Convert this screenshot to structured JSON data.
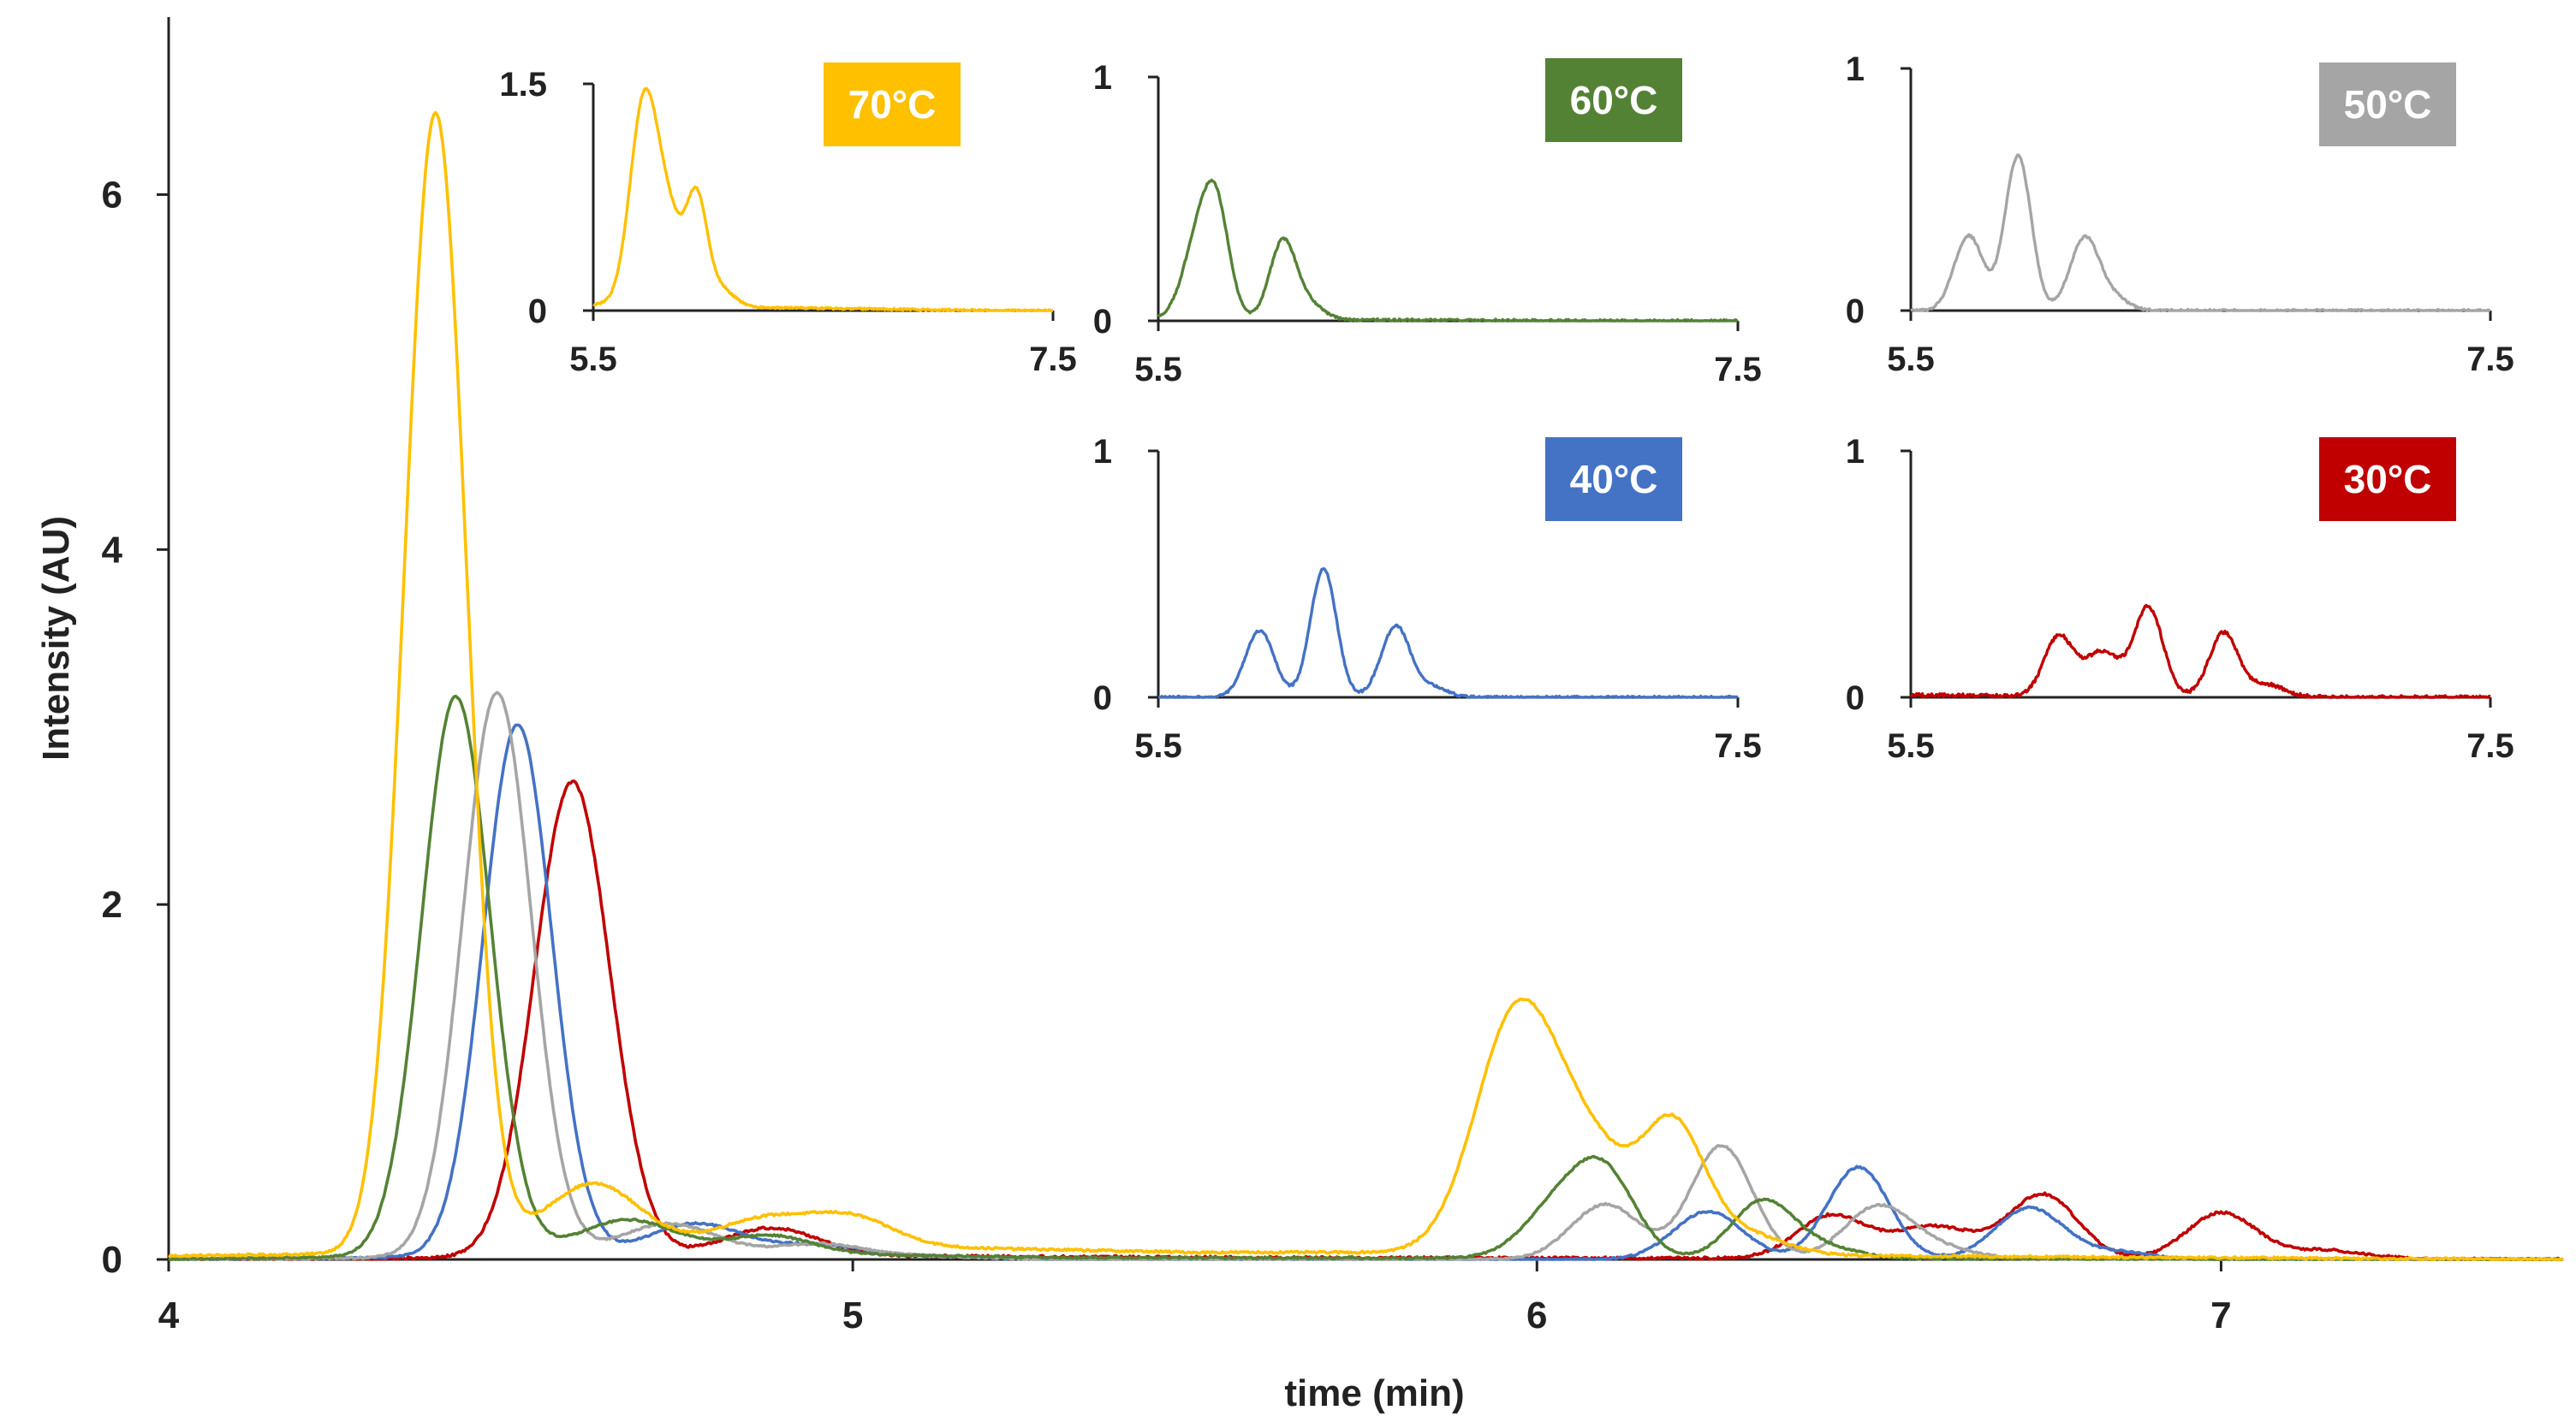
{
  "chart_data": {
    "type": "line",
    "title": "",
    "xlabel": "time (min)",
    "ylabel": "Intensity (AU)",
    "xlim": [
      4,
      7.5
    ],
    "ylim": [
      0,
      7
    ],
    "x_ticks": [
      "4",
      "5",
      "6",
      "7"
    ],
    "y_ticks": [
      "0",
      "2",
      "4",
      "6"
    ],
    "grid": false,
    "series": [
      {
        "name": "70°C",
        "color": "#FFC000",
        "peaks": [
          [
            4.39,
            6.42,
            0.045
          ],
          [
            4.62,
            0.38,
            0.07
          ],
          [
            4.87,
            0.17,
            0.07
          ],
          [
            5.0,
            0.16,
            0.06
          ],
          [
            5.97,
            1.32,
            0.06
          ],
          [
            6.08,
            0.52,
            0.06
          ],
          [
            6.2,
            0.68,
            0.045
          ],
          [
            6.3,
            0.12,
            0.06
          ]
        ],
        "baseline": [
          [
            4.0,
            0.02
          ],
          [
            5.1,
            0.07
          ],
          [
            5.5,
            0.04
          ],
          [
            5.85,
            0.04
          ],
          [
            6.5,
            0.02
          ],
          [
            7.5,
            0.0
          ]
        ],
        "noise": 0.006
      },
      {
        "name": "60°C",
        "color": "#548235",
        "peaks": [
          [
            4.42,
            3.15,
            0.05
          ],
          [
            4.67,
            0.19,
            0.07
          ],
          [
            4.88,
            0.1,
            0.06
          ],
          [
            6.03,
            0.28,
            0.05
          ],
          [
            6.1,
            0.44,
            0.045
          ],
          [
            6.33,
            0.32,
            0.045
          ],
          [
            6.42,
            0.06,
            0.05
          ]
        ],
        "baseline": [
          [
            4.0,
            0.0
          ],
          [
            4.8,
            0.04
          ],
          [
            5.3,
            0.01
          ],
          [
            7.5,
            0.0
          ]
        ],
        "noise": 0.005
      },
      {
        "name": "50°C",
        "color": "#A5A5A5",
        "peaks": [
          [
            4.48,
            3.18,
            0.05
          ],
          [
            4.73,
            0.18,
            0.07
          ],
          [
            4.95,
            0.06,
            0.06
          ],
          [
            6.1,
            0.31,
            0.05
          ],
          [
            6.27,
            0.64,
            0.045
          ],
          [
            6.5,
            0.3,
            0.05
          ],
          [
            6.6,
            0.05,
            0.05
          ]
        ],
        "baseline": [
          [
            4.0,
            0.0
          ],
          [
            5.0,
            0.03
          ],
          [
            5.3,
            0.0
          ],
          [
            7.5,
            0.0
          ]
        ],
        "noise": 0.005
      },
      {
        "name": "40°C",
        "color": "#4472C4",
        "peaks": [
          [
            4.51,
            3.0,
            0.05
          ],
          [
            4.77,
            0.18,
            0.07
          ],
          [
            4.95,
            0.05,
            0.06
          ],
          [
            6.25,
            0.27,
            0.05
          ],
          [
            6.47,
            0.52,
            0.045
          ],
          [
            6.72,
            0.29,
            0.05
          ],
          [
            6.85,
            0.04,
            0.05
          ]
        ],
        "baseline": [
          [
            4.0,
            0.0
          ],
          [
            5.0,
            0.03
          ],
          [
            5.3,
            0.0
          ],
          [
            7.5,
            0.0
          ]
        ],
        "noise": 0.005
      },
      {
        "name": "30°C",
        "color": "#C00000",
        "peaks": [
          [
            4.59,
            2.68,
            0.055
          ],
          [
            4.88,
            0.16,
            0.07
          ],
          [
            6.43,
            0.24,
            0.05
          ],
          [
            6.58,
            0.18,
            0.06
          ],
          [
            6.74,
            0.36,
            0.05
          ],
          [
            7.0,
            0.26,
            0.05
          ],
          [
            7.15,
            0.05,
            0.06
          ]
        ],
        "baseline": [
          [
            4.0,
            0.0
          ],
          [
            5.0,
            0.02
          ],
          [
            5.6,
            0.01
          ],
          [
            7.5,
            0.0
          ]
        ],
        "noise": 0.007
      }
    ],
    "insets": [
      {
        "label": "70°C",
        "color": "#FFC000",
        "series_index": 0,
        "xlim": [
          5.5,
          7.5
        ],
        "ylim": [
          0,
          1.5
        ],
        "x_ticks": [
          "5.5",
          "7.5"
        ],
        "y_ticks": [
          "0",
          "1.5"
        ],
        "scale": 1.0,
        "shift": -0.25
      },
      {
        "label": "60°C",
        "color": "#548235",
        "series_index": 1,
        "xlim": [
          5.5,
          7.5
        ],
        "ylim": [
          0,
          1
        ],
        "x_ticks": [
          "5.5",
          "7.5"
        ],
        "y_ticks": [
          "0",
          "1"
        ],
        "scale": 1.0,
        "shift": -0.4
      },
      {
        "label": "50°C",
        "color": "#A5A5A5",
        "series_index": 2,
        "xlim": [
          5.5,
          7.5
        ],
        "ylim": [
          0,
          1
        ],
        "x_ticks": [
          "5.5",
          "7.5"
        ],
        "y_ticks": [
          "0",
          "1"
        ],
        "scale": 1.0,
        "shift": -0.4
      },
      {
        "label": "40°C",
        "color": "#4472C4",
        "series_index": 3,
        "xlim": [
          5.5,
          7.5
        ],
        "ylim": [
          0,
          1
        ],
        "x_ticks": [
          "5.5",
          "7.5"
        ],
        "y_ticks": [
          "0",
          "1"
        ],
        "scale": 1.0,
        "shift": -0.4
      },
      {
        "label": "30°C",
        "color": "#C00000",
        "series_index": 4,
        "xlim": [
          5.5,
          7.5
        ],
        "ylim": [
          0,
          1
        ],
        "x_ticks": [
          "5.5",
          "7.5"
        ],
        "y_ticks": [
          "0",
          "1"
        ],
        "scale": 1.0,
        "shift": -0.42
      }
    ]
  }
}
